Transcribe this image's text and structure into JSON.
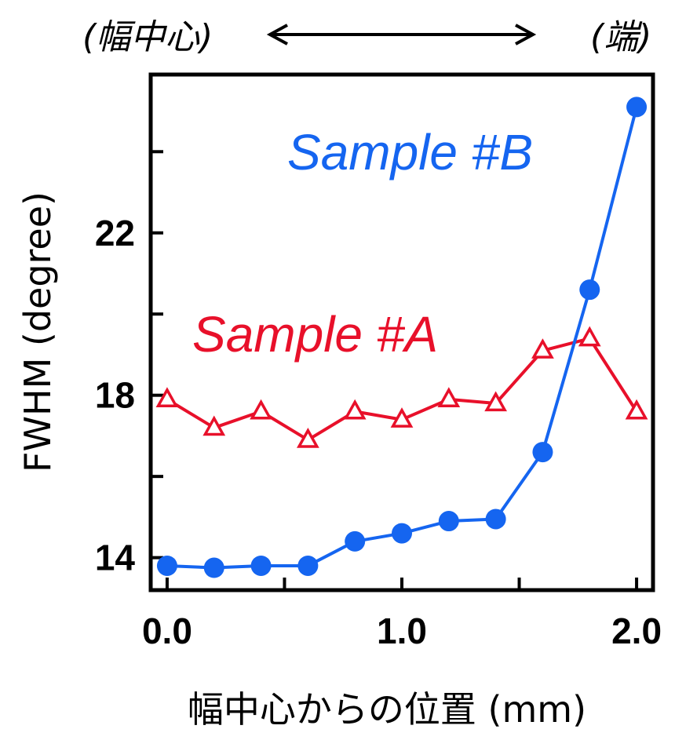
{
  "colors": {
    "sample_a": "#e8102a",
    "sample_b": "#1565f0",
    "axis": "#000000",
    "background": "#ffffff"
  },
  "annotations": {
    "left": "(幅中心)",
    "right": "(端)",
    "arrow": "double-headed-arrow"
  },
  "chart_data": {
    "type": "line",
    "title": "",
    "xlabel": "幅中心からの位置 (mm)",
    "ylabel": "FWHM (degree)",
    "xlim": [
      -0.07,
      2.07
    ],
    "ylim": [
      13.2,
      25.9
    ],
    "xticks": [
      0.0,
      1.0,
      2.0
    ],
    "xtick_labels": [
      "0.0",
      "1.0",
      "2.0"
    ],
    "xminor_ticks": [
      0.5,
      1.5
    ],
    "yticks": [
      14,
      18,
      22
    ],
    "ytick_labels": [
      "14",
      "18",
      "22"
    ],
    "yminor_ticks": [
      16,
      20,
      24
    ],
    "grid": false,
    "x": [
      0.0,
      0.2,
      0.4,
      0.6,
      0.8,
      1.0,
      1.2,
      1.4,
      1.6,
      1.8,
      2.0
    ],
    "series": [
      {
        "name": "Sample #A",
        "marker": "open-triangle",
        "values": [
          17.9,
          17.2,
          17.6,
          16.9,
          17.6,
          17.4,
          17.9,
          17.8,
          19.1,
          19.4,
          17.6
        ]
      },
      {
        "name": "Sample #B",
        "marker": "filled-circle",
        "values": [
          13.8,
          13.75,
          13.8,
          13.8,
          14.4,
          14.6,
          14.9,
          14.95,
          16.6,
          20.6,
          25.1
        ]
      }
    ]
  }
}
